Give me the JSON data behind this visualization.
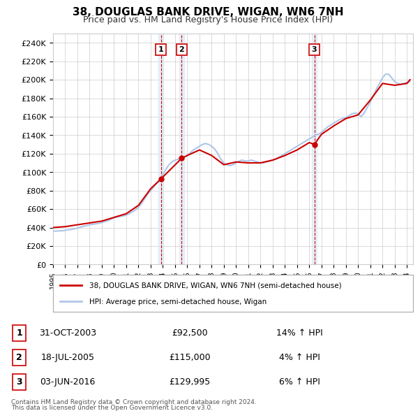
{
  "title": "38, DOUGLAS BANK DRIVE, WIGAN, WN6 7NH",
  "subtitle": "Price paid vs. HM Land Registry's House Price Index (HPI)",
  "legend_line1": "38, DOUGLAS BANK DRIVE, WIGAN, WN6 7NH (semi-detached house)",
  "legend_line2": "HPI: Average price, semi-detached house, Wigan",
  "footer1": "Contains HM Land Registry data © Crown copyright and database right 2024.",
  "footer2": "This data is licensed under the Open Government Licence v3.0.",
  "transactions": [
    {
      "num": 1,
      "date": "31-OCT-2003",
      "price": 92500,
      "pct": "14%",
      "dir": "↑"
    },
    {
      "num": 2,
      "date": "18-JUL-2005",
      "price": 115000,
      "pct": "4%",
      "dir": "↑"
    },
    {
      "num": 3,
      "date": "03-JUN-2016",
      "price": 129995,
      "pct": "6%",
      "dir": "↑"
    }
  ],
  "transaction_dates_decimal": [
    2003.833,
    2005.542,
    2016.417
  ],
  "transaction_prices": [
    92500,
    115000,
    129995
  ],
  "hpi_line_color": "#aec6e8",
  "price_line_color": "#cc0000",
  "vline_color": "#cc0000",
  "vline_shade_color": "#dce9f5",
  "background_color": "#ffffff",
  "grid_color": "#cccccc",
  "ylim": [
    0,
    250000
  ],
  "yticks": [
    0,
    20000,
    40000,
    60000,
    80000,
    100000,
    120000,
    140000,
    160000,
    180000,
    200000,
    220000,
    240000
  ],
  "xlim_start": 1995.0,
  "xlim_end": 2024.5,
  "hpi_data": {
    "years": [
      1995.0,
      1995.25,
      1995.5,
      1995.75,
      1996.0,
      1996.25,
      1996.5,
      1996.75,
      1997.0,
      1997.25,
      1997.5,
      1997.75,
      1998.0,
      1998.25,
      1998.5,
      1998.75,
      1999.0,
      1999.25,
      1999.5,
      1999.75,
      2000.0,
      2000.25,
      2000.5,
      2000.75,
      2001.0,
      2001.25,
      2001.5,
      2001.75,
      2002.0,
      2002.25,
      2002.5,
      2002.75,
      2003.0,
      2003.25,
      2003.5,
      2003.75,
      2004.0,
      2004.25,
      2004.5,
      2004.75,
      2005.0,
      2005.25,
      2005.5,
      2005.75,
      2006.0,
      2006.25,
      2006.5,
      2006.75,
      2007.0,
      2007.25,
      2007.5,
      2007.75,
      2008.0,
      2008.25,
      2008.5,
      2008.75,
      2009.0,
      2009.25,
      2009.5,
      2009.75,
      2010.0,
      2010.25,
      2010.5,
      2010.75,
      2011.0,
      2011.25,
      2011.5,
      2011.75,
      2012.0,
      2012.25,
      2012.5,
      2012.75,
      2013.0,
      2013.25,
      2013.5,
      2013.75,
      2014.0,
      2014.25,
      2014.5,
      2014.75,
      2015.0,
      2015.25,
      2015.5,
      2015.75,
      2016.0,
      2016.25,
      2016.5,
      2016.75,
      2017.0,
      2017.25,
      2017.5,
      2017.75,
      2018.0,
      2018.25,
      2018.5,
      2018.75,
      2019.0,
      2019.25,
      2019.5,
      2019.75,
      2020.0,
      2020.25,
      2020.5,
      2020.75,
      2021.0,
      2021.25,
      2021.5,
      2021.75,
      2022.0,
      2022.25,
      2022.5,
      2022.75,
      2023.0,
      2023.25,
      2023.5,
      2023.75,
      2024.0,
      2024.25
    ],
    "values": [
      36000,
      36200,
      36400,
      36500,
      37000,
      37500,
      38000,
      38500,
      39500,
      40500,
      41500,
      42000,
      43000,
      43500,
      44000,
      44500,
      45500,
      46500,
      47500,
      49000,
      50500,
      51500,
      52000,
      52500,
      53500,
      55000,
      57000,
      59000,
      62000,
      66000,
      71000,
      76000,
      80000,
      84000,
      88000,
      91000,
      97000,
      103000,
      108000,
      111000,
      113000,
      114000,
      115000,
      116000,
      118000,
      121000,
      124000,
      126000,
      128000,
      130000,
      131000,
      130000,
      128000,
      125000,
      120000,
      114000,
      110000,
      108000,
      107000,
      108000,
      110000,
      112000,
      113000,
      112000,
      112000,
      113000,
      112000,
      111000,
      110000,
      110000,
      111000,
      112000,
      113000,
      114000,
      116000,
      118000,
      120000,
      122000,
      124000,
      126000,
      128000,
      130000,
      132000,
      134000,
      136000,
      138000,
      140000,
      141000,
      143000,
      146000,
      149000,
      151000,
      153000,
      155000,
      157000,
      158000,
      159000,
      161000,
      163000,
      164000,
      163000,
      160000,
      164000,
      170000,
      176000,
      183000,
      190000,
      196000,
      202000,
      206000,
      206000,
      202000,
      198000,
      196000,
      195000,
      196000,
      197000,
      198000
    ]
  },
  "price_line_data": {
    "years": [
      1995.0,
      1996.0,
      1997.0,
      1998.0,
      1999.0,
      2000.0,
      2001.0,
      2002.0,
      2003.0,
      2003.833,
      2005.542,
      2006.0,
      2007.0,
      2008.0,
      2009.0,
      2010.0,
      2011.0,
      2012.0,
      2013.0,
      2014.0,
      2015.0,
      2016.0,
      2016.417,
      2017.0,
      2018.0,
      2019.0,
      2020.0,
      2021.0,
      2022.0,
      2023.0,
      2024.0,
      2024.25
    ],
    "values": [
      40000,
      41000,
      43000,
      45000,
      47000,
      51000,
      55000,
      64000,
      82000,
      92500,
      115000,
      118000,
      124000,
      118000,
      108000,
      111000,
      110000,
      110000,
      113000,
      118000,
      124000,
      132000,
      129995,
      141000,
      150000,
      158000,
      162000,
      178000,
      196000,
      194000,
      196000,
      200000
    ]
  }
}
